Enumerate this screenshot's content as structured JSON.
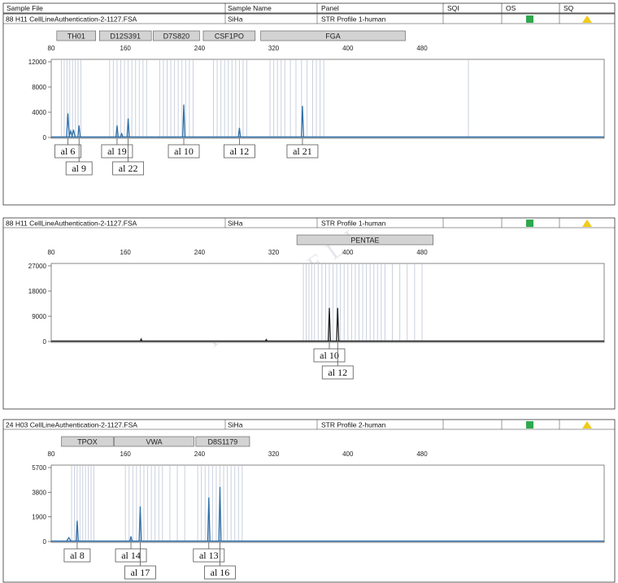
{
  "colors": {
    "peak_blue": "#2f6fa8",
    "peak_black": "#222222",
    "bin_line": "#c9d0dd",
    "marker_fill": "#d3d3d3",
    "status_green": "#2fa84f",
    "status_yellow": "#f0cc1a"
  },
  "header_labels": {
    "sample_file": "Sample File",
    "sample_name": "Sample Name",
    "panel": "Panel",
    "sqi": "SQI",
    "os": "OS",
    "sq": "SQ"
  },
  "watermark": "IMMOCELL",
  "panels": [
    {
      "file": "88  H11  CellLineAuthentication-2-1127.FSA",
      "sample_name": "SiHa",
      "panel_name": "STR Profile 1-human",
      "os_icon": "green-square-icon",
      "sq_icon": "yellow-triangle-icon"
    },
    {
      "file": "88  H11  CellLineAuthentication-2-1127.FSA",
      "sample_name": "SiHa",
      "panel_name": "STR Profile 1-human",
      "os_icon": "green-square-icon",
      "sq_icon": "yellow-triangle-icon"
    },
    {
      "file": "24  H03  CellLineAuthentication-2-1127.FSA",
      "sample_name": "SiHa",
      "panel_name": "STR Profile 2-human",
      "os_icon": "green-square-icon",
      "sq_icon": "yellow-triangle-icon"
    }
  ],
  "chart_data": [
    {
      "type": "line",
      "x_ticks": [
        80,
        160,
        240,
        320,
        400,
        480
      ],
      "xlim": [
        80,
        560
      ],
      "y_ticks": [
        "12000",
        "8000",
        "4000",
        "0"
      ],
      "ylim": [
        0,
        12000
      ],
      "color": "peak_blue",
      "markers": [
        {
          "name": "TH01",
          "range": [
            86,
            128
          ]
        },
        {
          "name": "D12S391",
          "range": [
            132,
            188
          ]
        },
        {
          "name": "D7S820",
          "range": [
            190,
            240
          ]
        },
        {
          "name": "CSF1PO",
          "range": [
            244,
            300
          ]
        },
        {
          "name": "FGA",
          "range": [
            306,
            462
          ]
        }
      ],
      "bins": [
        91,
        94,
        97,
        100,
        103,
        106,
        109,
        112,
        143,
        147,
        151,
        155,
        159,
        163,
        167,
        171,
        175,
        179,
        183,
        197,
        201,
        205,
        209,
        213,
        217,
        221,
        225,
        229,
        233,
        255,
        259,
        263,
        267,
        271,
        275,
        279,
        283,
        287,
        291,
        316,
        320,
        324,
        328,
        332,
        338,
        344,
        350,
        356,
        362,
        366,
        370,
        374,
        530
      ],
      "peaks": [
        {
          "x": 98,
          "y": 3800,
          "w": 1.2
        },
        {
          "x": 101,
          "y": 1000,
          "w": 1.5
        },
        {
          "x": 104,
          "y": 1200,
          "w": 1.5
        },
        {
          "x": 110,
          "y": 1900,
          "w": 1.0
        },
        {
          "x": 151,
          "y": 1900,
          "w": 1.0
        },
        {
          "x": 156,
          "y": 600,
          "w": 1.2
        },
        {
          "x": 163,
          "y": 3000,
          "w": 1.0
        },
        {
          "x": 223,
          "y": 5200,
          "w": 1.0
        },
        {
          "x": 283,
          "y": 1500,
          "w": 1.0
        },
        {
          "x": 351,
          "y": 5000,
          "w": 1.0
        }
      ],
      "alleles_row1": [
        {
          "label": "al 6",
          "x": 98
        },
        {
          "label": "al 19",
          "x": 151
        },
        {
          "label": "al 10",
          "x": 223
        },
        {
          "label": "al 12",
          "x": 283
        },
        {
          "label": "al 21",
          "x": 351
        }
      ],
      "alleles_row2": [
        {
          "label": "al 9",
          "x": 110
        },
        {
          "label": "al 22",
          "x": 163
        }
      ]
    },
    {
      "type": "line",
      "x_ticks": [
        80,
        160,
        240,
        320,
        400,
        480
      ],
      "xlim": [
        80,
        560
      ],
      "y_ticks": [
        "27000",
        "18000",
        "9000",
        "0"
      ],
      "ylim": [
        0,
        27000
      ],
      "color": "peak_black",
      "markers": [
        {
          "name": "PENTAE",
          "range": [
            345,
            492
          ]
        }
      ],
      "bins": [
        352,
        355,
        358,
        361,
        364,
        368,
        372,
        376,
        380,
        384,
        388,
        392,
        396,
        400,
        404,
        408,
        412,
        416,
        420,
        424,
        428,
        432,
        436,
        440,
        448,
        456,
        464,
        472,
        480
      ],
      "peaks": [
        {
          "x": 380,
          "y": 12000,
          "w": 1.0
        },
        {
          "x": 389,
          "y": 12000,
          "w": 1.0
        },
        {
          "x": 177,
          "y": 900,
          "w": 0.8
        },
        {
          "x": 312,
          "y": 700,
          "w": 0.8
        }
      ],
      "alleles_row1": [
        {
          "label": "al 10",
          "x": 380
        }
      ],
      "alleles_row2": [
        {
          "label": "al 12",
          "x": 389
        }
      ]
    },
    {
      "type": "line",
      "x_ticks": [
        80,
        160,
        240,
        320,
        400,
        480
      ],
      "xlim": [
        80,
        560
      ],
      "y_ticks": [
        "5700",
        "3800",
        "1900",
        "0"
      ],
      "ylim": [
        0,
        5700
      ],
      "color": "peak_blue",
      "markers": [
        {
          "name": "TPOX",
          "range": [
            91,
            147
          ]
        },
        {
          "name": "VWA",
          "range": [
            148,
            234
          ]
        },
        {
          "name": "D8S1179",
          "range": [
            236,
            294
          ]
        }
      ],
      "bins": [
        102,
        105,
        108,
        111,
        114,
        117,
        120,
        123,
        126,
        160,
        164,
        168,
        172,
        176,
        180,
        184,
        188,
        192,
        196,
        200,
        208,
        216,
        224,
        238,
        242,
        246,
        250,
        254,
        258,
        262,
        266,
        270,
        274,
        278,
        282,
        286
      ],
      "peaks": [
        {
          "x": 99,
          "y": 300,
          "w": 2.0
        },
        {
          "x": 108,
          "y": 1600,
          "w": 1.0
        },
        {
          "x": 166,
          "y": 400,
          "w": 1.0
        },
        {
          "x": 176,
          "y": 2700,
          "w": 1.0
        },
        {
          "x": 250,
          "y": 3400,
          "w": 1.0
        },
        {
          "x": 262,
          "y": 4200,
          "w": 1.0
        }
      ],
      "alleles_row1": [
        {
          "label": "al 8",
          "x": 108
        },
        {
          "label": "al 14",
          "x": 166
        },
        {
          "label": "al 13",
          "x": 250
        }
      ],
      "alleles_row2": [
        {
          "label": "al 17",
          "x": 176
        },
        {
          "label": "al 16",
          "x": 262
        }
      ]
    }
  ]
}
